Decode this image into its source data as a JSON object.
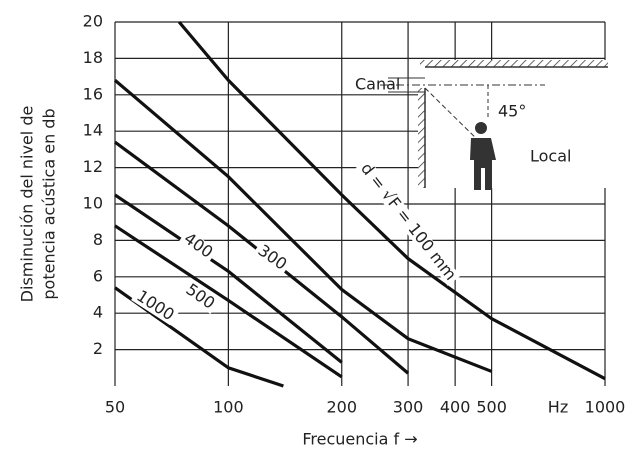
{
  "chart_data": {
    "type": "line",
    "ylabel": [
      "Disminución del nivel de",
      "potencia acústica en db"
    ],
    "xlabel": "Frecuencia f →",
    "x_unit": "Hz",
    "log_x": true,
    "grid": true,
    "xlim": [
      50,
      1000
    ],
    "ylim": [
      0,
      20
    ],
    "xticks": [
      50,
      100,
      200,
      300,
      400,
      500,
      1000
    ],
    "yticks": [
      2,
      4,
      6,
      8,
      10,
      12,
      14,
      16,
      18,
      20
    ],
    "annotations": [
      "Canal",
      "45°",
      "Local"
    ],
    "series": [
      {
        "name": "d = √F = 100 mm",
        "color": "#111111",
        "x": [
          74,
          100,
          200,
          300,
          500,
          1000
        ],
        "values": [
          20,
          16.8,
          10.5,
          7,
          3.7,
          0.4
        ]
      },
      {
        "color": "#111111",
        "x": [
          50,
          100,
          200,
          300,
          500
        ],
        "values": [
          16.8,
          11.5,
          5.3,
          2.6,
          0.8
        ]
      },
      {
        "name": "300",
        "color": "#111111",
        "x": [
          50,
          100,
          200,
          300
        ],
        "values": [
          13.4,
          8.8,
          3.8,
          0.7
        ]
      },
      {
        "name": "400",
        "color": "#111111",
        "x": [
          50,
          100,
          200
        ],
        "values": [
          10.5,
          6.3,
          1.3
        ]
      },
      {
        "name": "500",
        "color": "#111111",
        "x": [
          50,
          100,
          200
        ],
        "values": [
          8.8,
          4.7,
          0.5
        ]
      },
      {
        "name": "1000",
        "color": "#111111",
        "x": [
          50,
          100,
          140
        ],
        "values": [
          5.4,
          1,
          0
        ]
      }
    ]
  }
}
